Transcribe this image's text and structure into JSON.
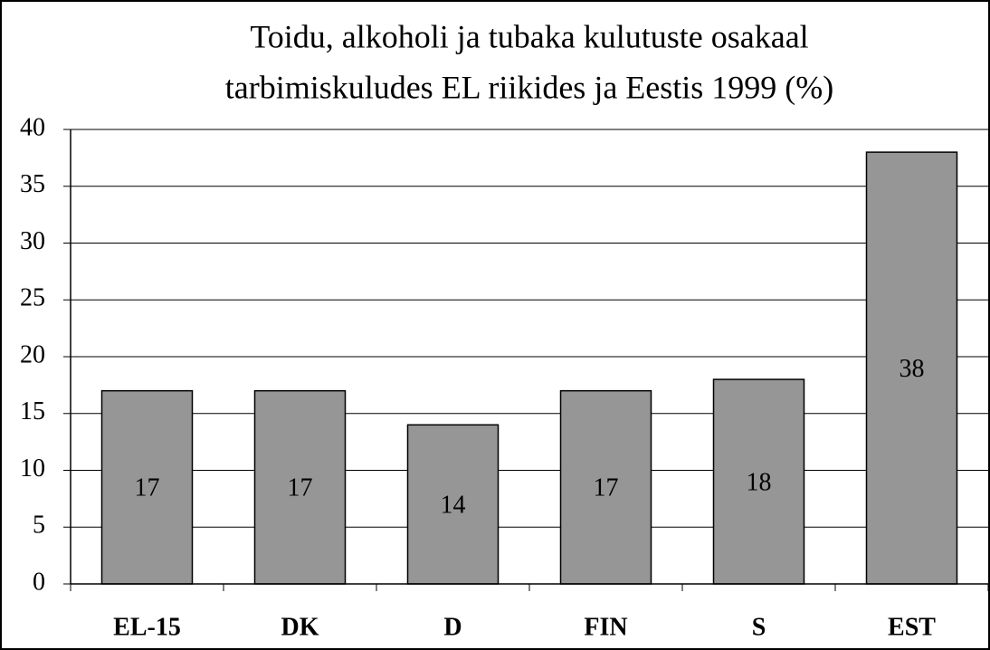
{
  "chart_data": {
    "type": "bar",
    "title": [
      "Toidu, alkoholi ja tubaka kulutuste osakaal",
      "tarbimiskuludes EL riikides ja Eestis 1999 (%)"
    ],
    "categories": [
      "EL-15",
      "DK",
      "D",
      "FIN",
      "S",
      "EST"
    ],
    "values": [
      17,
      17,
      14,
      17,
      18,
      38
    ],
    "color": "#969696",
    "ylim": [
      0,
      40
    ],
    "yticks": [
      0,
      5,
      10,
      15,
      20,
      25,
      30,
      35,
      40
    ],
    "grid": true
  }
}
